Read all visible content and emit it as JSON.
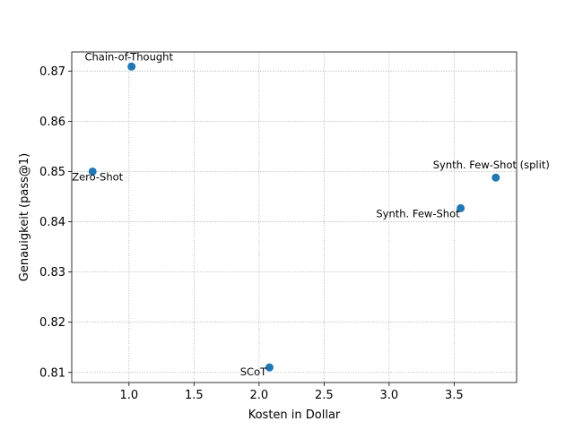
{
  "chart_data": {
    "type": "scatter",
    "xlabel": "Kosten in Dollar",
    "ylabel": "Genauigkeit (pass@1)",
    "xlim": [
      0.56,
      3.98
    ],
    "ylim": [
      0.808,
      0.8738
    ],
    "xticks": [
      1.0,
      1.5,
      2.0,
      2.5,
      3.0,
      3.5
    ],
    "xtick_labels": [
      "1.0",
      "1.5",
      "2.0",
      "2.5",
      "3.0",
      "3.5"
    ],
    "yticks": [
      0.81,
      0.82,
      0.83,
      0.84,
      0.85,
      0.86,
      0.87
    ],
    "ytick_labels": [
      "0.81",
      "0.82",
      "0.83",
      "0.84",
      "0.85",
      "0.86",
      "0.87"
    ],
    "grid": true,
    "point_color": "#1f77b4",
    "points": [
      {
        "label": "Zero-Shot",
        "x": 0.72,
        "y": 0.85
      },
      {
        "label": "Chain-of-Thought",
        "x": 1.02,
        "y": 0.8709
      },
      {
        "label": "SCoT",
        "x": 2.08,
        "y": 0.811
      },
      {
        "label": "Synth. Few-Shot",
        "x": 3.55,
        "y": 0.8427
      },
      {
        "label": "Synth. Few-Shot (split)",
        "x": 3.82,
        "y": 0.8488
      }
    ]
  }
}
